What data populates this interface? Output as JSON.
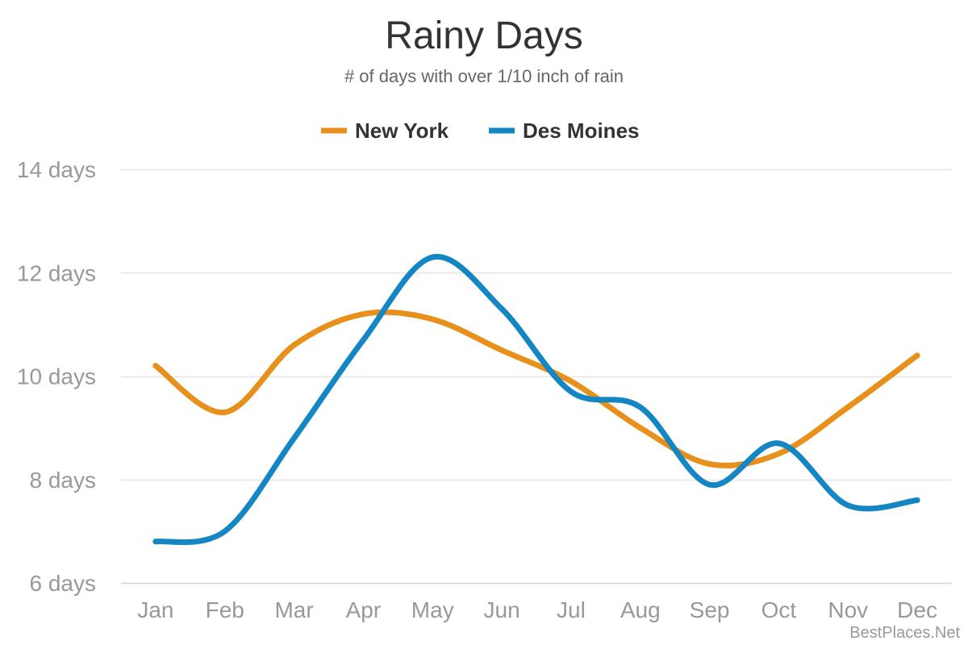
{
  "chart_data": {
    "type": "line",
    "title": "Rainy Days",
    "subtitle": "# of days with over 1/10 inch of rain",
    "categories": [
      "Jan",
      "Feb",
      "Mar",
      "Apr",
      "May",
      "Jun",
      "Jul",
      "Aug",
      "Sep",
      "Oct",
      "Nov",
      "Dec"
    ],
    "series": [
      {
        "name": "New York",
        "color": "#e8901c",
        "values": [
          10.2,
          9.3,
          10.6,
          11.2,
          11.1,
          10.5,
          9.9,
          9.0,
          8.3,
          8.5,
          9.4,
          10.4
        ]
      },
      {
        "name": "Des Moines",
        "color": "#1586c4",
        "values": [
          6.8,
          7.0,
          8.8,
          10.7,
          12.3,
          11.3,
          9.7,
          9.4,
          7.9,
          8.7,
          7.5,
          7.6
        ]
      }
    ],
    "yticks": [
      6,
      8,
      10,
      12,
      14
    ],
    "ytick_labels": [
      "6 days",
      "8 days",
      "10 days",
      "12 days",
      "14 days"
    ],
    "ylim": [
      6,
      14
    ],
    "grid": true,
    "legend_position": "top-center",
    "credit": "BestPlaces.Net",
    "colors": {
      "grid": "#e6e6e6",
      "axis": "#ccd6eb"
    }
  }
}
